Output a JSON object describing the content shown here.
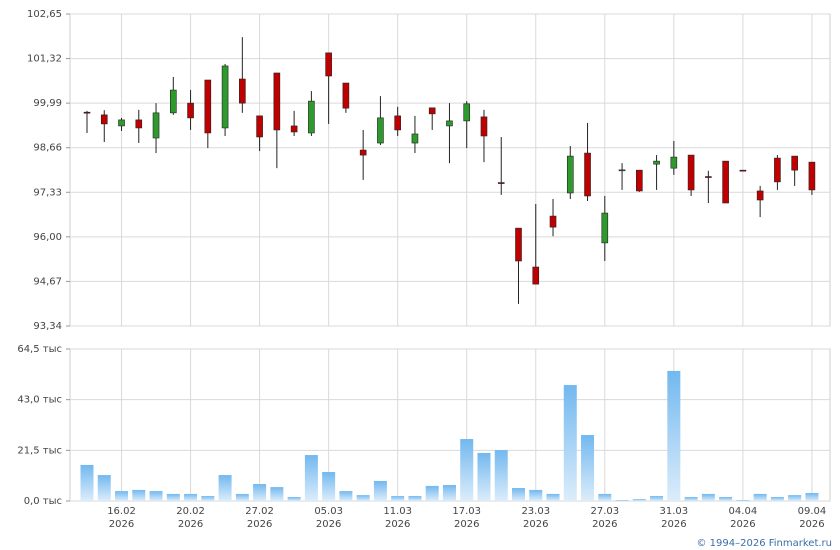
{
  "chart_data": [
    {
      "type": "candlestick",
      "categories": [
        null,
        null,
        "16.02",
        null,
        null,
        null,
        "20.02",
        null,
        null,
        null,
        "27.02",
        null,
        null,
        null,
        "05.03",
        null,
        null,
        null,
        "11.03",
        null,
        null,
        null,
        "17.03",
        null,
        null,
        null,
        "23.03",
        null,
        null,
        null,
        "27.03",
        null,
        null,
        null,
        "31.03",
        null,
        null,
        null,
        "04.04",
        null,
        null,
        null,
        "09.04"
      ],
      "x_sublabels": [
        null,
        null,
        "2026",
        null,
        null,
        null,
        "2026",
        null,
        null,
        null,
        "2026",
        null,
        null,
        null,
        "2026",
        null,
        null,
        null,
        "2026",
        null,
        null,
        null,
        "2026",
        null,
        null,
        null,
        "2026",
        null,
        null,
        null,
        "2026",
        null,
        null,
        null,
        "2026",
        null,
        null,
        null,
        "2026",
        null,
        null,
        null,
        "2026"
      ],
      "open": [
        99.72,
        99.64,
        99.31,
        99.49,
        98.95,
        99.7,
        99.99,
        100.68,
        99.25,
        100.71,
        99.61,
        100.89,
        99.31,
        99.1,
        101.49,
        100.59,
        98.59,
        98.8,
        99.61,
        98.8,
        99.85,
        99.31,
        99.46,
        99.58,
        97.62,
        96.26,
        95.1,
        96.62,
        97.31,
        98.5,
        95.82,
        97.99,
        97.99,
        98.17,
        98.05,
        98.44,
        97.8,
        98.26,
        97.99,
        97.37,
        98.35,
        98.41,
        98.23
      ],
      "high": [
        99.76,
        99.78,
        99.55,
        99.79,
        99.99,
        100.77,
        100.38,
        100.68,
        101.16,
        101.96,
        99.61,
        100.89,
        99.76,
        100.35,
        101.49,
        100.59,
        99.19,
        100.2,
        99.88,
        99.61,
        99.85,
        99.99,
        100.05,
        99.79,
        98.98,
        96.26,
        96.98,
        97.13,
        98.71,
        99.4,
        97.22,
        98.2,
        97.99,
        98.44,
        98.86,
        98.44,
        97.97,
        98.26,
        97.99,
        97.52,
        98.44,
        98.41,
        98.23
      ],
      "low": [
        99.1,
        98.83,
        99.16,
        98.8,
        98.5,
        99.64,
        99.19,
        98.65,
        99.01,
        99.7,
        98.56,
        98.05,
        99.01,
        99.01,
        99.37,
        99.7,
        97.7,
        98.74,
        99.01,
        98.5,
        99.19,
        98.2,
        98.65,
        98.23,
        97.25,
        94.0,
        94.59,
        96.02,
        97.13,
        97.07,
        95.28,
        97.4,
        97.34,
        97.4,
        97.85,
        97.22,
        97.01,
        97.01,
        97.98,
        96.59,
        97.4,
        97.52,
        97.25
      ],
      "close": [
        99.7,
        99.37,
        99.49,
        99.25,
        99.7,
        100.38,
        99.55,
        99.1,
        101.1,
        99.99,
        98.98,
        99.19,
        99.13,
        100.05,
        100.8,
        99.84,
        98.44,
        99.55,
        99.19,
        99.07,
        99.67,
        99.46,
        99.97,
        99.01,
        97.6,
        95.28,
        94.59,
        96.29,
        98.41,
        97.22,
        96.71,
        98.0,
        97.37,
        98.26,
        98.38,
        97.4,
        97.79,
        97.01,
        97.98,
        97.1,
        97.64,
        97.99,
        97.4
      ],
      "up_color": "#2e9a2e",
      "down_color": "#c00000",
      "ylim": [
        93.34,
        102.65
      ],
      "yticks": [
        {
          "value": 93.34,
          "label": "93,34"
        },
        {
          "value": 94.67,
          "label": "94,67"
        },
        {
          "value": 96.0,
          "label": "96,00"
        },
        {
          "value": 97.33,
          "label": "97,33"
        },
        {
          "value": 98.66,
          "label": "98,66"
        },
        {
          "value": 99.99,
          "label": "99,99"
        },
        {
          "value": 101.32,
          "label": "101,32"
        },
        {
          "value": 102.65,
          "label": "102,65"
        }
      ],
      "grid": true
    },
    {
      "type": "bar",
      "values": [
        15.3,
        11.0,
        4.2,
        4.7,
        4.2,
        3.0,
        3.0,
        2.1,
        11.0,
        3.0,
        7.2,
        5.9,
        1.7,
        19.5,
        12.3,
        4.2,
        2.5,
        8.5,
        2.1,
        2.1,
        6.4,
        6.8,
        26.3,
        20.4,
        21.6,
        5.5,
        4.7,
        3.0,
        49.2,
        28.0,
        3.0,
        0.4,
        0.8,
        2.1,
        55.2,
        1.7,
        3.0,
        1.7,
        0.4,
        3.0,
        1.7,
        2.5,
        3.4
      ],
      "color": "#72b8ef",
      "ylim": [
        0,
        64.5
      ],
      "yticks": [
        {
          "value": 0,
          "label": "0,0 тыс"
        },
        {
          "value": 21.5,
          "label": "21,5 тыс"
        },
        {
          "value": 43.0,
          "label": "43,0 тыс"
        },
        {
          "value": 64.5,
          "label": "64,5 тыс"
        }
      ],
      "grid": true
    }
  ],
  "footer": "© 1994–2026 Finmarket.ru"
}
